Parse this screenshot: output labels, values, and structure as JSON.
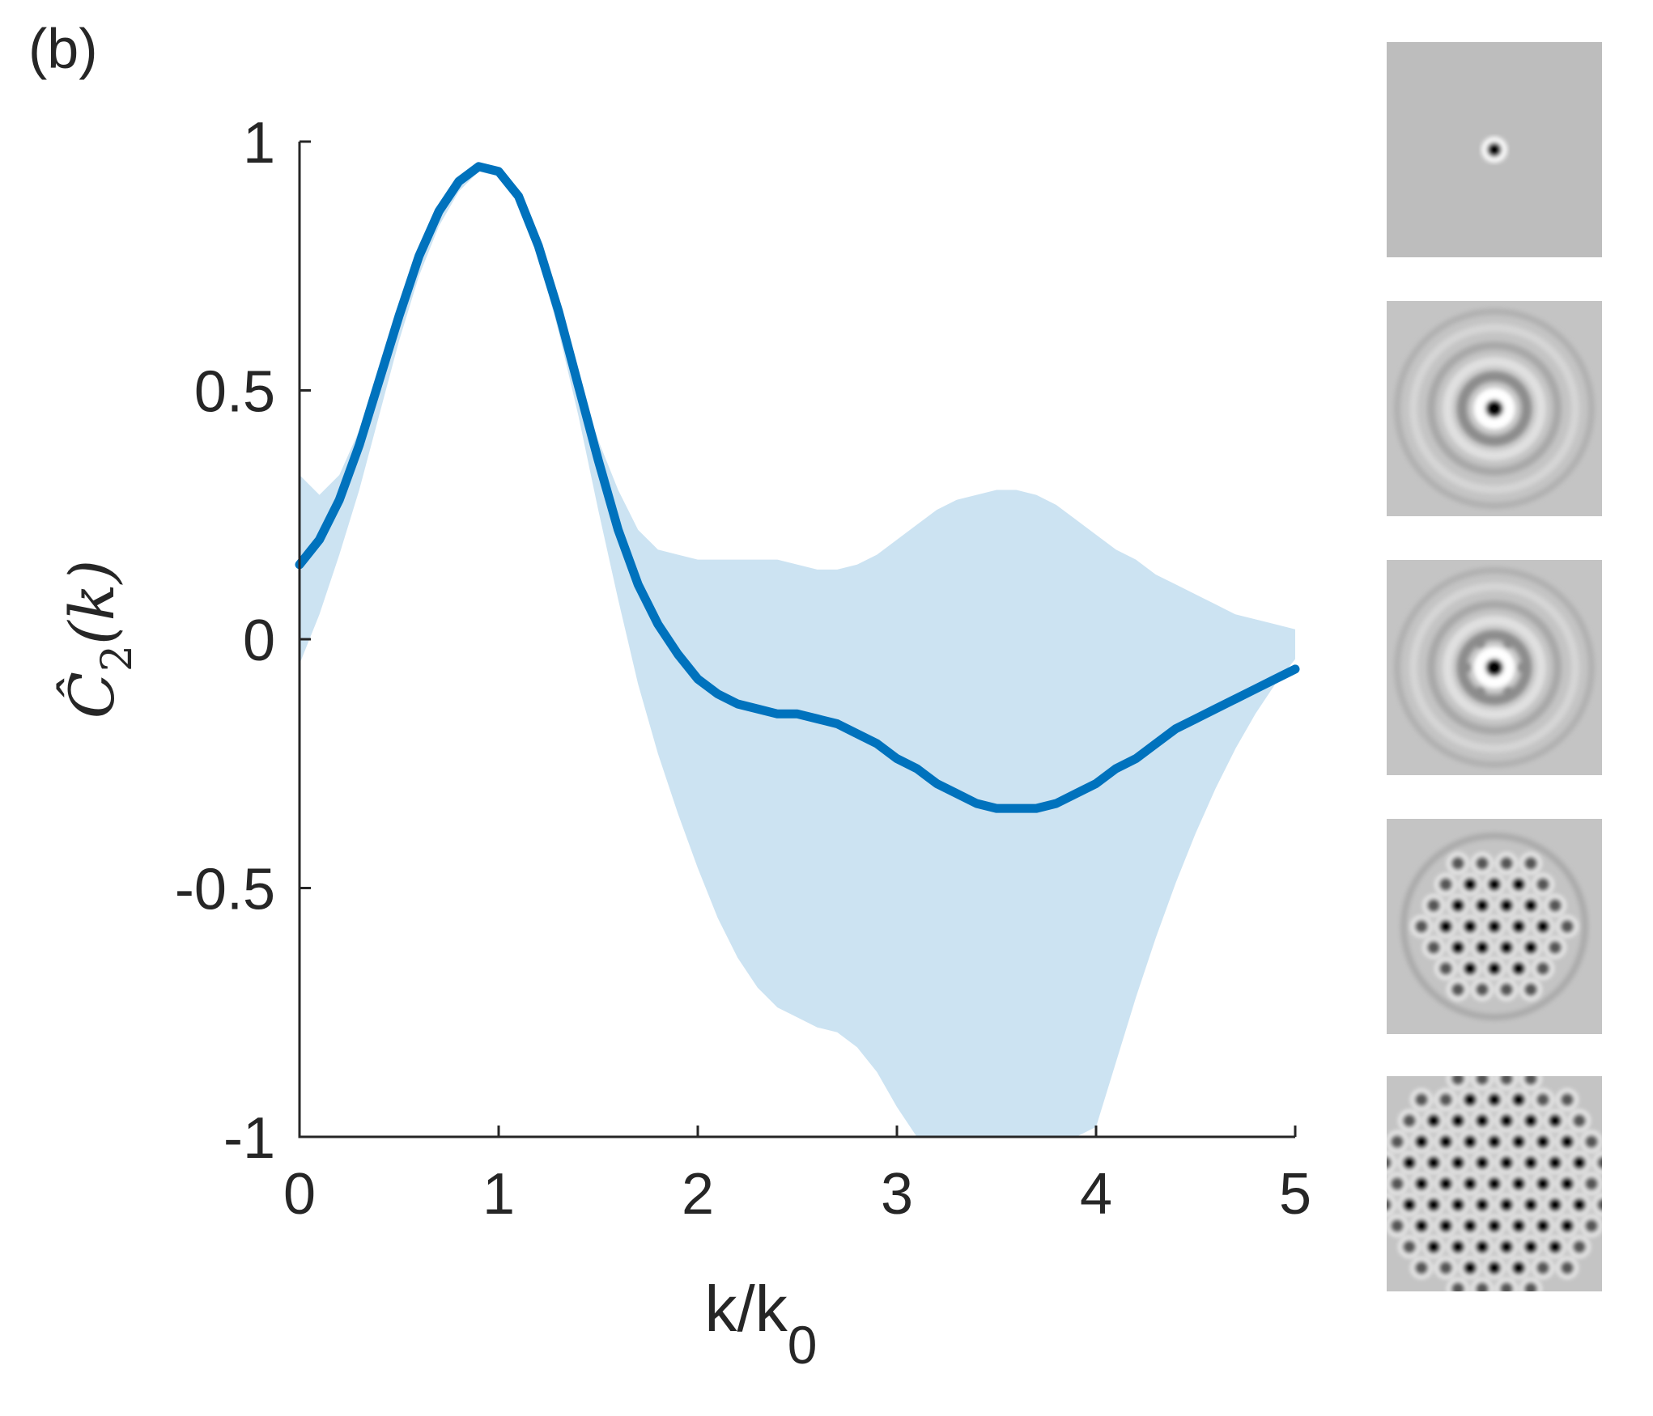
{
  "panel_label": "(b)",
  "chart_data": {
    "type": "line",
    "title": "",
    "xlabel": "k/k",
    "xlabel_subscript": "0",
    "ylabel": "Ĉ",
    "ylabel_subscript": "2",
    "ylabel_suffix": "(k)",
    "xlim": [
      0,
      5
    ],
    "ylim": [
      -1,
      1
    ],
    "x_ticks": [
      "0",
      "1",
      "2",
      "3",
      "4",
      "5"
    ],
    "y_ticks": [
      "-1",
      "-0.5",
      "0",
      "0.5",
      "1"
    ],
    "grid": false,
    "series": [
      {
        "color": "#0072bd",
        "x": [
          0,
          0.1,
          0.2,
          0.3,
          0.4,
          0.5,
          0.6,
          0.7,
          0.8,
          0.9,
          1.0,
          1.1,
          1.2,
          1.3,
          1.4,
          1.5,
          1.6,
          1.7,
          1.8,
          1.9,
          2.0,
          2.1,
          2.2,
          2.3,
          2.4,
          2.5,
          2.6,
          2.7,
          2.8,
          2.9,
          3.0,
          3.1,
          3.2,
          3.3,
          3.4,
          3.5,
          3.6,
          3.7,
          3.8,
          3.9,
          4.0,
          4.1,
          4.2,
          4.3,
          4.4,
          4.5,
          4.6,
          4.7,
          4.8,
          4.9,
          5.0
        ],
        "values": [
          0.15,
          0.2,
          0.28,
          0.39,
          0.52,
          0.65,
          0.77,
          0.86,
          0.92,
          0.95,
          0.94,
          0.89,
          0.79,
          0.66,
          0.51,
          0.36,
          0.22,
          0.11,
          0.03,
          -0.03,
          -0.08,
          -0.11,
          -0.13,
          -0.14,
          -0.15,
          -0.15,
          -0.16,
          -0.17,
          -0.19,
          -0.21,
          -0.24,
          -0.26,
          -0.29,
          -0.31,
          -0.33,
          -0.34,
          -0.34,
          -0.34,
          -0.33,
          -0.31,
          -0.29,
          -0.26,
          -0.24,
          -0.21,
          -0.18,
          -0.16,
          -0.14,
          -0.12,
          -0.1,
          -0.08,
          -0.06
        ],
        "band_upper": [
          0.33,
          0.29,
          0.33,
          0.42,
          0.55,
          0.67,
          0.78,
          0.87,
          0.93,
          0.95,
          0.94,
          0.89,
          0.8,
          0.67,
          0.52,
          0.4,
          0.3,
          0.22,
          0.18,
          0.17,
          0.16,
          0.16,
          0.16,
          0.16,
          0.16,
          0.15,
          0.14,
          0.14,
          0.15,
          0.17,
          0.2,
          0.23,
          0.26,
          0.28,
          0.29,
          0.3,
          0.3,
          0.29,
          0.27,
          0.24,
          0.21,
          0.18,
          0.16,
          0.13,
          0.11,
          0.09,
          0.07,
          0.05,
          0.04,
          0.03,
          0.02
        ],
        "band_lower": [
          -0.05,
          0.05,
          0.17,
          0.3,
          0.45,
          0.6,
          0.73,
          0.83,
          0.9,
          0.94,
          0.93,
          0.88,
          0.77,
          0.62,
          0.45,
          0.26,
          0.08,
          -0.09,
          -0.23,
          -0.35,
          -0.46,
          -0.56,
          -0.64,
          -0.7,
          -0.74,
          -0.76,
          -0.78,
          -0.79,
          -0.82,
          -0.87,
          -0.94,
          -1.01,
          -1.1,
          -1.18,
          -1.24,
          -1.27,
          -1.27,
          -1.24,
          -1.18,
          -1.09,
          -0.98,
          -0.85,
          -0.72,
          -0.6,
          -0.49,
          -0.39,
          -0.3,
          -0.22,
          -0.15,
          -0.09,
          -0.04
        ]
      }
    ]
  },
  "thumbnails": [
    {
      "name": "pattern-single-spot",
      "background": "#bdbdbd",
      "kind": "spot"
    },
    {
      "name": "pattern-ring-1",
      "background": "#c4c4c4",
      "kind": "rings"
    },
    {
      "name": "pattern-ring-2",
      "background": "#c4c4c4",
      "kind": "rings-hex"
    },
    {
      "name": "pattern-hex-cluster",
      "background": "#c4c4c4",
      "kind": "cluster-small"
    },
    {
      "name": "pattern-hex-lattice",
      "background": "#c4c4c4",
      "kind": "cluster-large"
    }
  ]
}
